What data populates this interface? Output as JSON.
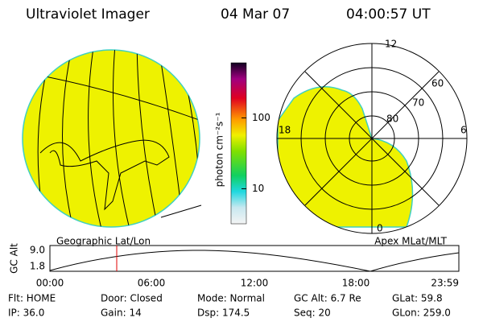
{
  "header": {
    "instrument": "Ultraviolet Imager",
    "date": "04 Mar 07",
    "time": "04:00:57 UT"
  },
  "colorbar": {
    "label": "photon cm⁻²s⁻¹",
    "ticks": [
      10,
      100
    ],
    "lim": [
      3.2,
      600
    ],
    "log": true
  },
  "left_map": {
    "caption": "Geographic Lat/Lon"
  },
  "polar_map": {
    "caption": "Apex MLat/MLT",
    "mlt_labels": [
      "12",
      "18",
      "6",
      "0"
    ],
    "lat_labels": [
      "60",
      "70",
      "80"
    ]
  },
  "orbit_plot": {
    "ylabel": "GC Alt",
    "yticks": [
      "9.0",
      "1.8"
    ],
    "xticks": [
      "00:00",
      "06:00",
      "12:00",
      "18:00",
      "23:59"
    ]
  },
  "status": [
    [
      "Flt: HOME",
      "Door: Closed",
      "Mode: Normal",
      "GC Alt: 6.7 Re",
      "GLat: 59.8"
    ],
    [
      "IP: 36.0",
      "Gain: 14",
      "Dsp: 174.5",
      "Seq: 20",
      "GLon: 259.0"
    ]
  ]
}
